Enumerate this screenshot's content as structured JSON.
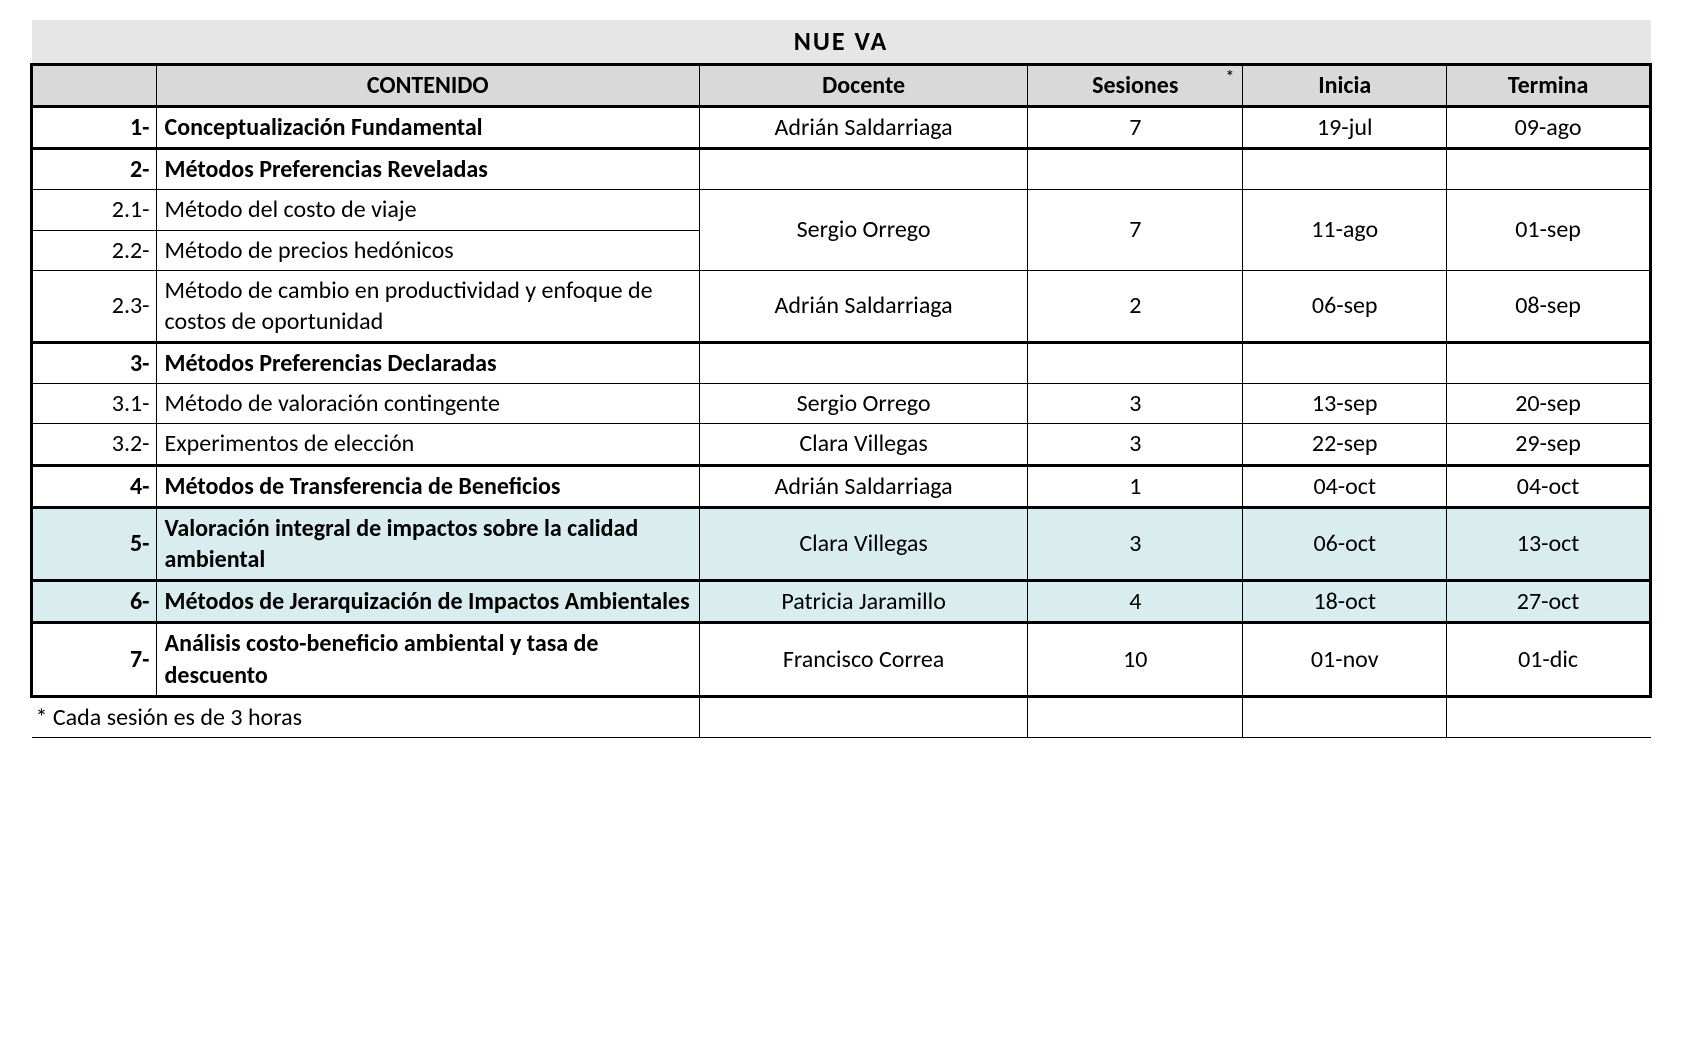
{
  "title": "NUE VA",
  "footnote": "* Cada sesión es de 3 horas",
  "colors": {
    "title_bg": "#e6e6e6",
    "header_bg": "#d9d9d9",
    "highlight_bg": "#d9ecee",
    "border": "#000000",
    "text": "#000000",
    "page_bg": "#ffffff"
  },
  "headers": {
    "num": "",
    "contenido": "CONTENIDO",
    "docente": "Docente",
    "sesiones": "Sesiones",
    "inicia": "Inicia",
    "termina": "Termina",
    "asterisk": "*"
  },
  "rows": {
    "r1": {
      "num": "1-",
      "contenido": "Conceptualización Fundamental",
      "docente": "Adrián Saldarriaga",
      "ses": "7",
      "inicia": "19-jul",
      "termina": "09-ago"
    },
    "r2": {
      "num": "2-",
      "contenido": "Métodos Preferencias Reveladas",
      "docente": "",
      "ses": "",
      "inicia": "",
      "termina": ""
    },
    "r21a": {
      "num": "2.1-",
      "contenido": "Método del costo de viaje"
    },
    "r22a": {
      "num": "2.2-",
      "contenido": "Método de precios hedónicos"
    },
    "g21": {
      "docente": "Sergio Orrego",
      "ses": "7",
      "inicia": "11-ago",
      "termina": "01-sep"
    },
    "r23": {
      "num": "2.3-",
      "contenido": "Método de cambio en productividad y enfoque de costos de oportunidad",
      "docente": "Adrián Saldarriaga",
      "ses": "2",
      "inicia": "06-sep",
      "termina": "08-sep"
    },
    "r3": {
      "num": "3-",
      "contenido": "Métodos Preferencias Declaradas",
      "docente": "",
      "ses": "",
      "inicia": "",
      "termina": ""
    },
    "r31": {
      "num": "3.1-",
      "contenido": "Método de valoración contingente",
      "docente": "Sergio Orrego",
      "ses": "3",
      "inicia": "13-sep",
      "termina": "20-sep"
    },
    "r32": {
      "num": "3.2-",
      "contenido": "Experimentos de elección",
      "docente": "Clara Villegas",
      "ses": "3",
      "inicia": "22-sep",
      "termina": "29-sep"
    },
    "r4": {
      "num": "4-",
      "contenido": "Métodos de Transferencia de Beneficios",
      "docente": "Adrián Saldarriaga",
      "ses": "1",
      "inicia": "04-oct",
      "termina": "04-oct"
    },
    "r5": {
      "num": "5-",
      "contenido": "Valoración integral de impactos sobre la calidad ambiental",
      "docente": "Clara Villegas",
      "ses": "3",
      "inicia": "06-oct",
      "termina": "13-oct"
    },
    "r6": {
      "num": "6-",
      "contenido": "Métodos de Jerarquización de Impactos Ambientales",
      "docente": "Patricia Jaramillo",
      "ses": "4",
      "inicia": "18-oct",
      "termina": "27-oct"
    },
    "r7": {
      "num": "7-",
      "contenido": "Análisis costo-beneficio ambiental y tasa de descuento",
      "docente": "Francisco Correa",
      "ses": "10",
      "inicia": "01-nov",
      "termina": "01-dic"
    }
  }
}
